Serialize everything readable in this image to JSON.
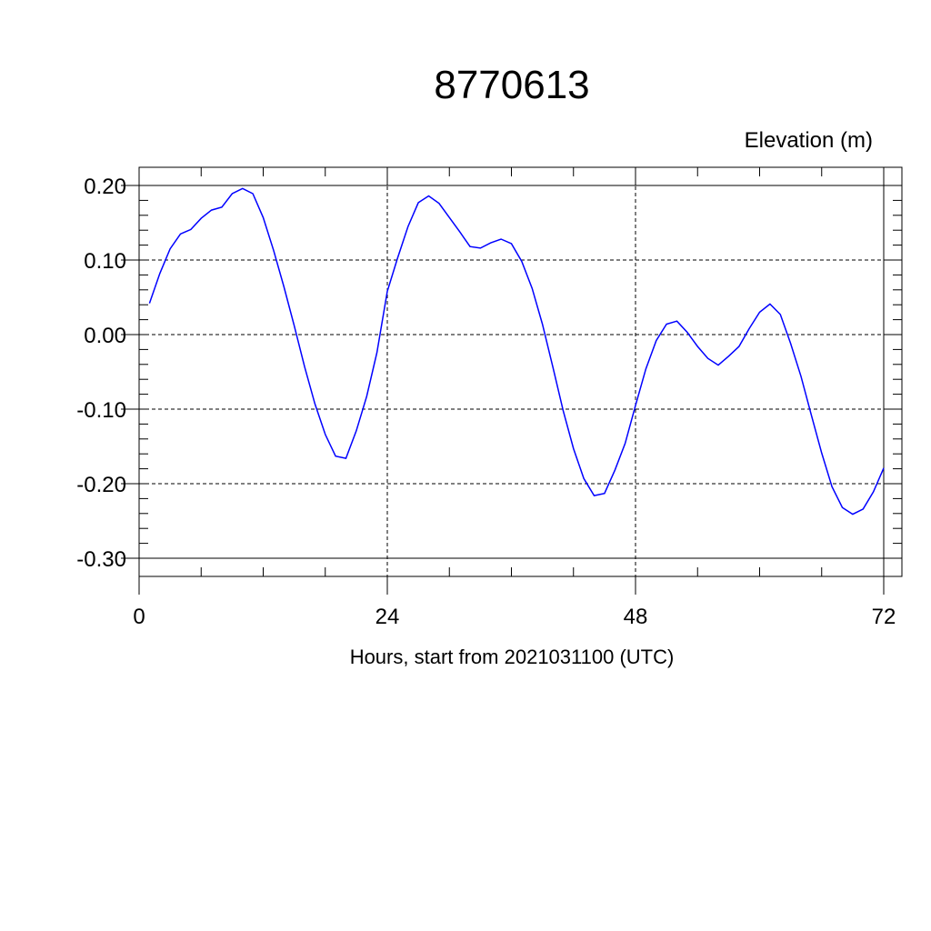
{
  "chart_data": {
    "type": "line",
    "title": "8770613",
    "ylabel": "Elevation (m)",
    "xlabel": "Hours, start from 2021031100 (UTC)",
    "xlim": [
      0,
      72
    ],
    "ylim": [
      -0.3,
      0.2
    ],
    "x_ticks": [
      0,
      24,
      48,
      72
    ],
    "x_tick_labels": [
      "0",
      "24",
      "48",
      "72"
    ],
    "y_ticks": [
      0.2,
      0.1,
      0.0,
      -0.1,
      -0.2,
      -0.3
    ],
    "y_tick_labels": [
      "0.20",
      "0.10",
      "0.00",
      "-0.10",
      "-0.20",
      "-0.30"
    ],
    "grid": true,
    "colors": {
      "line": "#0000ff",
      "axis": "#000000"
    },
    "series": [
      {
        "x": [
          1,
          2,
          3,
          4,
          5,
          6,
          7,
          8,
          9,
          10,
          11,
          12,
          13,
          14,
          15,
          16,
          17,
          18,
          19,
          20,
          21,
          22,
          23,
          24,
          25,
          26,
          27,
          28,
          29,
          30,
          31,
          32,
          33,
          34,
          35,
          36,
          37,
          38,
          39,
          40,
          41,
          42,
          43,
          44,
          45,
          46,
          47,
          48,
          49,
          50,
          51,
          52,
          53,
          54,
          55,
          56,
          57,
          58,
          59,
          60,
          61,
          62,
          63,
          64,
          65,
          66,
          67,
          68,
          69,
          70,
          71,
          72
        ],
        "values": [
          0.042,
          0.082,
          0.115,
          0.135,
          0.141,
          0.156,
          0.167,
          0.171,
          0.189,
          0.196,
          0.189,
          0.157,
          0.113,
          0.064,
          0.012,
          -0.043,
          -0.093,
          -0.134,
          -0.163,
          -0.166,
          -0.129,
          -0.083,
          -0.024,
          0.058,
          0.103,
          0.145,
          0.177,
          0.186,
          0.176,
          0.157,
          0.138,
          0.118,
          0.116,
          0.123,
          0.128,
          0.122,
          0.098,
          0.062,
          0.014,
          -0.043,
          -0.102,
          -0.153,
          -0.193,
          -0.216,
          -0.213,
          -0.182,
          -0.146,
          -0.095,
          -0.046,
          -0.008,
          0.014,
          0.018,
          0.003,
          -0.016,
          -0.032,
          -0.041,
          -0.029,
          -0.016,
          0.008,
          0.03,
          0.041,
          0.027,
          -0.012,
          -0.056,
          -0.108,
          -0.159,
          -0.204,
          -0.232,
          -0.241,
          -0.234,
          -0.211,
          -0.179
        ]
      }
    ]
  }
}
